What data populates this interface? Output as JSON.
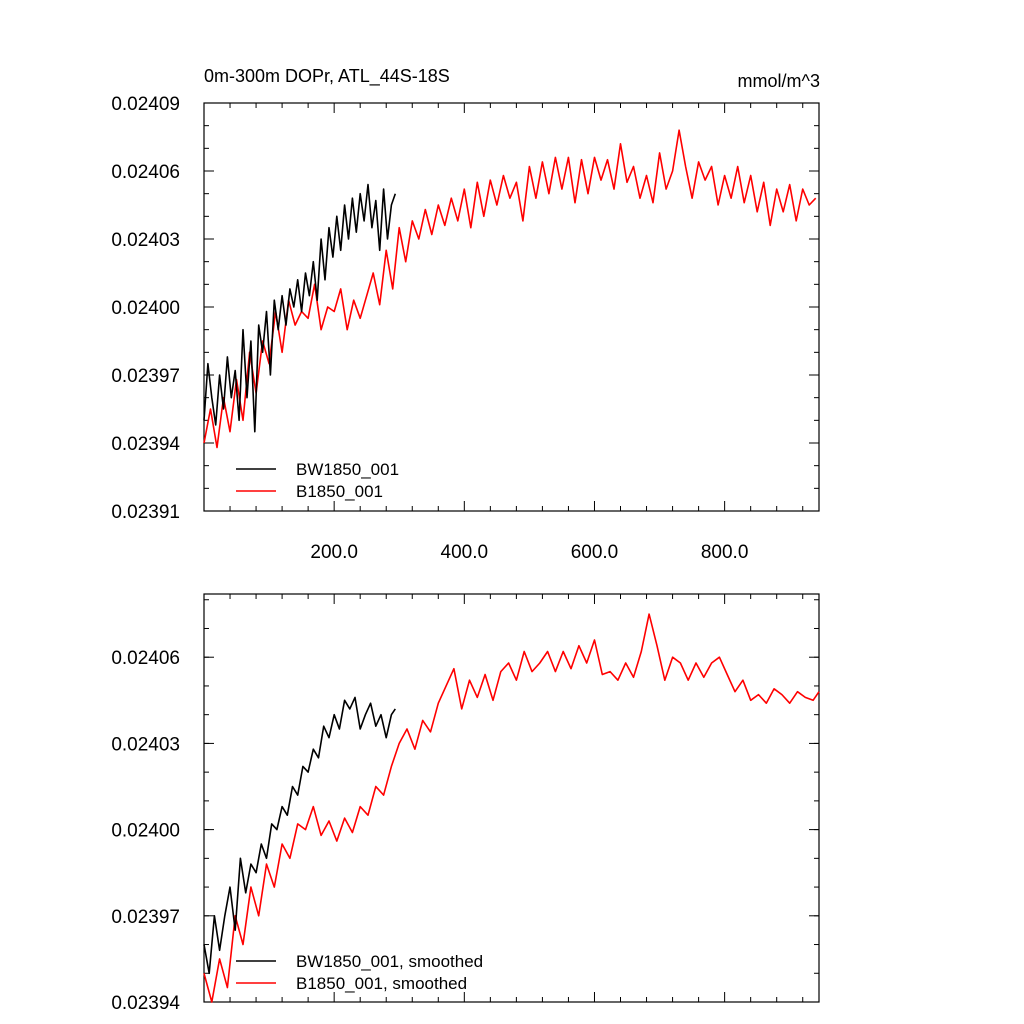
{
  "chart_data": [
    {
      "type": "line",
      "title": "0m-300m DOPr, ATL_44S-18S",
      "units": "mmol/m^3",
      "xlim": [
        0,
        945
      ],
      "ylim": [
        0.02391,
        0.02409
      ],
      "x_ticks": [
        200,
        400,
        600,
        800
      ],
      "x_tick_labels": [
        "200.0",
        "400.0",
        "600.0",
        "800.0"
      ],
      "y_ticks": [
        0.02391,
        0.02394,
        0.02397,
        0.024,
        0.02403,
        0.02406,
        0.02409
      ],
      "y_tick_labels": [
        "0.02391",
        "0.02394",
        "0.02397",
        "0.02400",
        "0.02403",
        "0.02406",
        "0.02409"
      ],
      "legend_position": "bottom-left",
      "series": [
        {
          "name": "BW1850_001",
          "color": "#000000",
          "x": [
            0,
            6,
            12,
            18,
            24,
            30,
            36,
            42,
            48,
            54,
            60,
            66,
            72,
            78,
            84,
            90,
            96,
            102,
            108,
            114,
            120,
            126,
            132,
            138,
            144,
            150,
            156,
            162,
            168,
            174,
            180,
            186,
            192,
            198,
            204,
            210,
            216,
            222,
            228,
            234,
            240,
            246,
            252,
            258,
            264,
            270,
            276,
            282,
            288,
            294
          ],
          "values": [
            0.02395,
            0.023975,
            0.02396,
            0.023948,
            0.02397,
            0.023955,
            0.023978,
            0.02396,
            0.023972,
            0.02395,
            0.02399,
            0.02396,
            0.023985,
            0.023945,
            0.023992,
            0.02398,
            0.023998,
            0.02397,
            0.024003,
            0.02399,
            0.024005,
            0.023992,
            0.024008,
            0.024,
            0.024012,
            0.023998,
            0.024015,
            0.024005,
            0.02402,
            0.024003,
            0.02403,
            0.024012,
            0.024035,
            0.024022,
            0.02404,
            0.024025,
            0.024045,
            0.02403,
            0.024048,
            0.024033,
            0.02405,
            0.024038,
            0.024054,
            0.024035,
            0.024047,
            0.024025,
            0.024052,
            0.02403,
            0.024045,
            0.02405
          ]
        },
        {
          "name": "B1850_001",
          "color": "#ff0000",
          "x": [
            0,
            10,
            20,
            30,
            40,
            50,
            60,
            70,
            80,
            90,
            100,
            110,
            120,
            130,
            140,
            150,
            160,
            170,
            180,
            190,
            200,
            210,
            220,
            230,
            240,
            250,
            260,
            270,
            280,
            290,
            300,
            310,
            320,
            330,
            340,
            350,
            360,
            370,
            380,
            390,
            400,
            410,
            420,
            430,
            440,
            450,
            460,
            470,
            480,
            490,
            500,
            510,
            520,
            530,
            540,
            550,
            560,
            570,
            580,
            590,
            600,
            610,
            620,
            630,
            640,
            650,
            660,
            670,
            680,
            690,
            700,
            710,
            720,
            730,
            740,
            750,
            760,
            770,
            780,
            790,
            800,
            810,
            820,
            830,
            840,
            850,
            860,
            870,
            880,
            890,
            900,
            910,
            920,
            930,
            940
          ],
          "values": [
            0.02394,
            0.023955,
            0.023938,
            0.02396,
            0.023945,
            0.023968,
            0.02395,
            0.02398,
            0.023962,
            0.023985,
            0.023975,
            0.023998,
            0.02398,
            0.024003,
            0.023992,
            0.023998,
            0.023995,
            0.02401,
            0.02399,
            0.024,
            0.023998,
            0.024008,
            0.02399,
            0.024003,
            0.023995,
            0.024005,
            0.024015,
            0.024001,
            0.024025,
            0.024008,
            0.024035,
            0.02402,
            0.024038,
            0.02403,
            0.024043,
            0.024032,
            0.024045,
            0.024036,
            0.024048,
            0.024038,
            0.024052,
            0.024035,
            0.024055,
            0.02404,
            0.024056,
            0.024045,
            0.024058,
            0.024048,
            0.024055,
            0.024038,
            0.024062,
            0.024048,
            0.024064,
            0.02405,
            0.024066,
            0.024052,
            0.024066,
            0.024046,
            0.024065,
            0.02405,
            0.024066,
            0.024056,
            0.024065,
            0.024052,
            0.024072,
            0.024055,
            0.024062,
            0.024048,
            0.024058,
            0.024046,
            0.024068,
            0.024052,
            0.02406,
            0.024078,
            0.024062,
            0.024048,
            0.024064,
            0.024056,
            0.024062,
            0.024045,
            0.024058,
            0.024048,
            0.024062,
            0.024046,
            0.024058,
            0.024042,
            0.024055,
            0.024036,
            0.024052,
            0.024042,
            0.024054,
            0.024038,
            0.024052,
            0.024045,
            0.024048
          ]
        }
      ]
    },
    {
      "type": "line",
      "xlim": [
        0,
        945
      ],
      "ylim": [
        0.02394,
        0.024082
      ],
      "y_ticks": [
        0.02394,
        0.02397,
        0.024,
        0.02403,
        0.02406
      ],
      "y_tick_labels": [
        "0.02394",
        "0.02397",
        "0.02400",
        "0.02403",
        "0.02406"
      ],
      "legend_position": "bottom-left",
      "series": [
        {
          "name": "BW1850_001, smoothed",
          "color": "#000000",
          "x": [
            0,
            8,
            16,
            24,
            32,
            40,
            48,
            56,
            64,
            72,
            80,
            88,
            96,
            104,
            112,
            120,
            128,
            136,
            144,
            152,
            160,
            168,
            176,
            184,
            192,
            200,
            208,
            216,
            224,
            232,
            240,
            248,
            256,
            264,
            272,
            280,
            288,
            294
          ],
          "values": [
            0.02396,
            0.02395,
            0.02397,
            0.023958,
            0.02397,
            0.02398,
            0.023965,
            0.02399,
            0.023978,
            0.023988,
            0.023985,
            0.023995,
            0.02399,
            0.024002,
            0.024,
            0.024008,
            0.024005,
            0.024015,
            0.024012,
            0.024022,
            0.02402,
            0.024028,
            0.024025,
            0.024036,
            0.024032,
            0.02404,
            0.024035,
            0.024045,
            0.024042,
            0.024046,
            0.024035,
            0.02404,
            0.024044,
            0.024036,
            0.02404,
            0.024032,
            0.02404,
            0.024042
          ]
        },
        {
          "name": "B1850_001, smoothed",
          "color": "#ff0000",
          "x": [
            0,
            12,
            24,
            36,
            48,
            60,
            72,
            84,
            96,
            108,
            120,
            132,
            144,
            156,
            168,
            180,
            192,
            204,
            216,
            228,
            240,
            252,
            264,
            276,
            288,
            300,
            312,
            324,
            336,
            348,
            360,
            372,
            384,
            396,
            408,
            420,
            432,
            444,
            456,
            468,
            480,
            492,
            504,
            516,
            528,
            540,
            552,
            564,
            576,
            588,
            600,
            612,
            624,
            636,
            648,
            660,
            672,
            684,
            696,
            708,
            720,
            732,
            744,
            756,
            768,
            780,
            792,
            804,
            816,
            828,
            840,
            852,
            864,
            876,
            888,
            900,
            912,
            924,
            936,
            945
          ],
          "values": [
            0.02395,
            0.02394,
            0.023955,
            0.023945,
            0.02397,
            0.02396,
            0.02398,
            0.02397,
            0.023988,
            0.02398,
            0.023995,
            0.02399,
            0.024002,
            0.024,
            0.024008,
            0.023998,
            0.024003,
            0.023996,
            0.024004,
            0.023999,
            0.024008,
            0.024005,
            0.024015,
            0.024012,
            0.024022,
            0.02403,
            0.024035,
            0.024028,
            0.024038,
            0.024034,
            0.024044,
            0.02405,
            0.024056,
            0.024042,
            0.024052,
            0.024046,
            0.024054,
            0.024045,
            0.024055,
            0.024058,
            0.024052,
            0.024062,
            0.024055,
            0.024058,
            0.024062,
            0.024055,
            0.024062,
            0.024056,
            0.024064,
            0.024058,
            0.024066,
            0.024054,
            0.024055,
            0.024052,
            0.024058,
            0.024053,
            0.024062,
            0.024075,
            0.024064,
            0.024052,
            0.02406,
            0.024058,
            0.024052,
            0.024058,
            0.024053,
            0.024058,
            0.02406,
            0.024054,
            0.024048,
            0.024052,
            0.024045,
            0.024047,
            0.024044,
            0.024049,
            0.024047,
            0.024044,
            0.024048,
            0.024046,
            0.024045,
            0.024048
          ]
        }
      ]
    }
  ]
}
